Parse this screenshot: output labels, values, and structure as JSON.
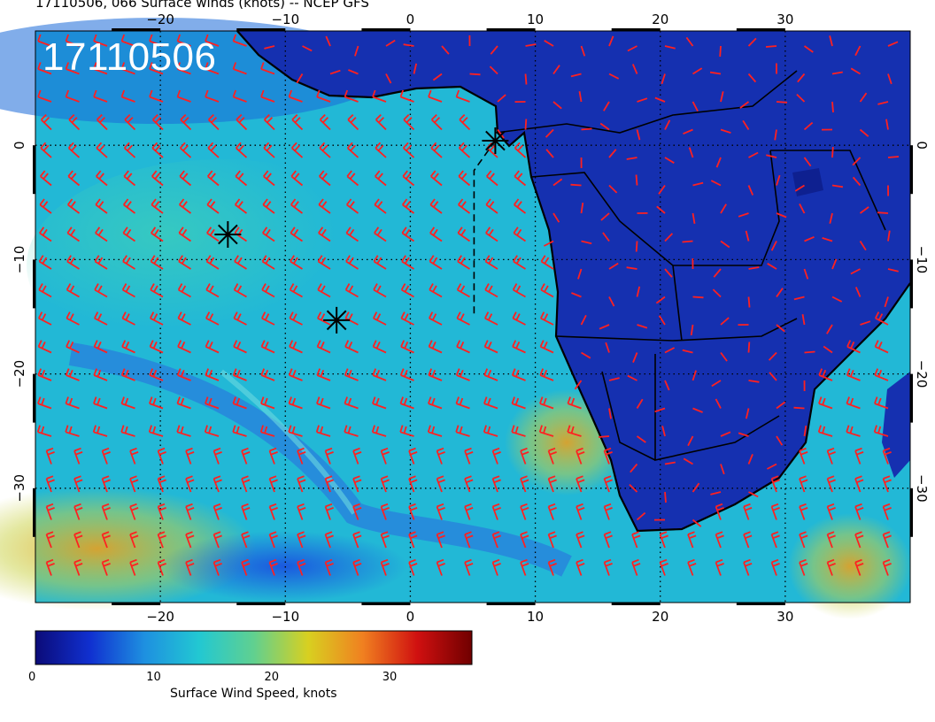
{
  "title": "17110506, 066 Surface winds (knots) -- NCEP GFS",
  "stamp": "17110506",
  "map": {
    "lon_range": [
      -30,
      40
    ],
    "lat_range": [
      -40,
      10
    ],
    "lon_ticks": [
      -20,
      -10,
      0,
      10,
      20,
      30
    ],
    "lon_tick_labels": [
      "−20",
      "−10",
      "0",
      "10",
      "20",
      "30"
    ],
    "lat_ticks": [
      0,
      -10,
      -20,
      -30
    ],
    "lat_tick_labels": [
      "0",
      "−10",
      "−20",
      "−30"
    ],
    "colors": {
      "ocean": "#22b8d6",
      "land": "#1530b0",
      "barb": "#ff2020",
      "coast": "#000000"
    },
    "markers": [
      {
        "lon": 6.8,
        "lat": 0.4
      },
      {
        "lon": -14.6,
        "lat": -7.8
      },
      {
        "lon": -5.9,
        "lat": -15.3
      }
    ],
    "track": [
      [
        6.8,
        0.4
      ],
      [
        5.1,
        -2.2
      ],
      [
        5.1,
        -15.0
      ]
    ]
  },
  "colorbar": {
    "title": "Surface Wind Speed, knots",
    "ticks": [
      "0",
      "10",
      "20",
      "30"
    ],
    "range": [
      0,
      37
    ],
    "stops": [
      "#0b0b78",
      "#1030d0",
      "#1e90e0",
      "#22c8d2",
      "#60d090",
      "#d8d020",
      "#f08020",
      "#d01010",
      "#700000"
    ]
  }
}
